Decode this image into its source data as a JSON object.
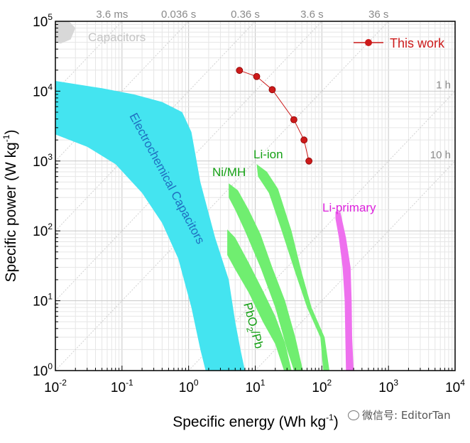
{
  "chart_data": {
    "type": "area",
    "xlabel": "Specific energy (Wh kg",
    "xlabel_sup": "-1",
    "xlabel_tail": ")",
    "ylabel": "Specific power (W kg",
    "ylabel_sup": "-1",
    "ylabel_tail": ")",
    "x_scale": "log",
    "y_scale": "log",
    "xlim": [
      0.01,
      10000
    ],
    "ylim": [
      1,
      100000
    ],
    "x_ticks": [
      {
        "v": 0.01,
        "base": "10",
        "exp": "-2"
      },
      {
        "v": 0.1,
        "base": "10",
        "exp": "-1"
      },
      {
        "v": 1,
        "base": "10",
        "exp": "0"
      },
      {
        "v": 10,
        "base": "10",
        "exp": "1"
      },
      {
        "v": 100,
        "base": "10",
        "exp": "2"
      },
      {
        "v": 1000,
        "base": "10",
        "exp": "3"
      },
      {
        "v": 10000,
        "base": "10",
        "exp": "4"
      }
    ],
    "y_ticks": [
      {
        "v": 1,
        "base": "10",
        "exp": "0"
      },
      {
        "v": 10,
        "base": "10",
        "exp": "1"
      },
      {
        "v": 100,
        "base": "10",
        "exp": "2"
      },
      {
        "v": 1000,
        "base": "10",
        "exp": "3"
      },
      {
        "v": 10000,
        "base": "10",
        "exp": "4"
      },
      {
        "v": 100000,
        "base": "10",
        "exp": "5"
      }
    ],
    "grid": true,
    "time_lines": [
      {
        "label": "3.6 ms",
        "seconds": 0.0036,
        "label_pos": "top"
      },
      {
        "label": "0.036 s",
        "seconds": 0.036,
        "label_pos": "top"
      },
      {
        "label": "0.36 s",
        "seconds": 0.36,
        "label_pos": "top"
      },
      {
        "label": "3.6 s",
        "seconds": 3.6,
        "label_pos": "top"
      },
      {
        "label": "36 s",
        "seconds": 36,
        "label_pos": "top"
      },
      {
        "label": "1 h",
        "seconds": 3600,
        "label_pos": "right"
      },
      {
        "label": "10 h",
        "seconds": 36000,
        "label_pos": "right"
      }
    ],
    "regions": [
      {
        "name": "Capacitors",
        "color": "#d8d8d8",
        "label_color": "#c4c4c4",
        "boundary": [
          [
            0.01,
            100000
          ],
          [
            0.016,
            100000
          ],
          [
            0.02,
            80000
          ],
          [
            0.017,
            55000
          ],
          [
            0.012,
            48000
          ],
          [
            0.01,
            50000
          ]
        ]
      },
      {
        "name": "Electrochemical Capacitors",
        "color": "#44e4f0",
        "label_color": "#1f6fc0",
        "boundary": [
          [
            0.01,
            14000
          ],
          [
            0.05,
            11000
          ],
          [
            0.15,
            9000
          ],
          [
            0.4,
            7000
          ],
          [
            0.8,
            5000
          ],
          [
            1.1,
            2600
          ],
          [
            1.5,
            500
          ],
          [
            2.5,
            80
          ],
          [
            4,
            20
          ],
          [
            5,
            5
          ],
          [
            6,
            2
          ],
          [
            7,
            1
          ],
          [
            1.8,
            1
          ],
          [
            1.5,
            2
          ],
          [
            1.1,
            8
          ],
          [
            0.7,
            40
          ],
          [
            0.4,
            130
          ],
          [
            0.2,
            350
          ],
          [
            0.08,
            900
          ],
          [
            0.03,
            1600
          ],
          [
            0.01,
            2400
          ]
        ]
      },
      {
        "name": "Li-ion",
        "color": "#70ee70",
        "label_color": "#14a014",
        "boundary": [
          [
            10.5,
            900
          ],
          [
            15,
            700
          ],
          [
            22,
            400
          ],
          [
            35,
            100
          ],
          [
            50,
            25
          ],
          [
            70,
            8
          ],
          [
            110,
            3
          ],
          [
            130,
            1
          ],
          [
            105,
            1
          ],
          [
            95,
            3
          ],
          [
            60,
            8
          ],
          [
            40,
            25
          ],
          [
            25,
            100
          ],
          [
            16,
            350
          ],
          [
            11,
            600
          ]
        ]
      },
      {
        "name": "Ni/MH",
        "color": "#70ee70",
        "label_color": "#14a014",
        "boundary": [
          [
            4,
            480
          ],
          [
            5.5,
            380
          ],
          [
            8,
            200
          ],
          [
            12,
            90
          ],
          [
            18,
            30
          ],
          [
            28,
            10
          ],
          [
            40,
            3
          ],
          [
            52,
            1
          ],
          [
            38,
            1
          ],
          [
            30,
            2
          ],
          [
            20,
            8
          ],
          [
            12,
            30
          ],
          [
            7,
            100
          ],
          [
            5,
            200
          ],
          [
            4,
            300
          ]
        ]
      },
      {
        "name": "PbO2/Pb",
        "color": "#70ee70",
        "label_color": "#14a014",
        "boundary": [
          [
            3.8,
            105
          ],
          [
            5,
            80
          ],
          [
            8,
            35
          ],
          [
            13,
            14
          ],
          [
            20,
            6
          ],
          [
            28,
            2.5
          ],
          [
            35,
            1
          ],
          [
            27,
            1
          ],
          [
            20,
            2.4
          ],
          [
            13,
            5
          ],
          [
            8,
            13
          ],
          [
            5,
            28
          ],
          [
            3.8,
            45
          ]
        ]
      },
      {
        "name": "Li-primary",
        "color": "#ee70ee",
        "label_color": "#dd22dd",
        "boundary": [
          [
            160,
            190
          ],
          [
            190,
            185
          ],
          [
            230,
            80
          ],
          [
            270,
            30
          ],
          [
            280,
            10
          ],
          [
            285,
            3
          ],
          [
            300,
            1
          ],
          [
            230,
            1
          ],
          [
            225,
            3
          ],
          [
            220,
            10
          ],
          [
            205,
            30
          ],
          [
            180,
            80
          ],
          [
            160,
            150
          ]
        ]
      }
    ],
    "series": [
      {
        "name": "This work",
        "color": "#cc1a1a",
        "x": [
          5.8,
          10.5,
          18,
          38,
          54,
          64
        ],
        "y": [
          19800,
          16200,
          10500,
          3900,
          2000,
          1000
        ]
      }
    ],
    "legend": {
      "position": "top-right",
      "label": "This work"
    },
    "annotation_subscript": "2"
  },
  "watermark": {
    "text": "微信号: EditorTan"
  }
}
